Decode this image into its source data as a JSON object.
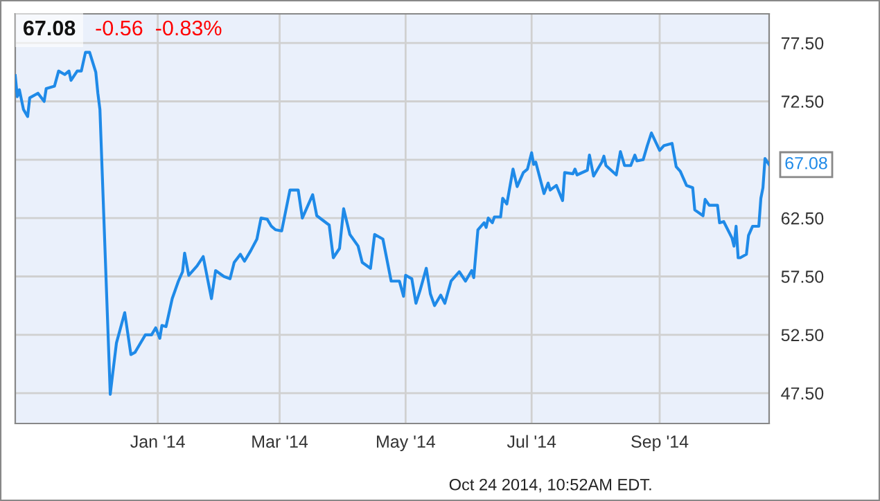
{
  "chart_data": {
    "type": "line",
    "title": "67.08",
    "subtitle": "-0.56  -0.83%",
    "x": [
      "2013-10-24",
      "2013-10-25",
      "2013-10-26",
      "2013-10-28",
      "2013-10-30",
      "2013-10-31",
      "2013-11-04",
      "2013-11-07",
      "2013-11-08",
      "2013-11-12",
      "2013-11-14",
      "2013-11-17",
      "2013-11-19",
      "2013-11-20",
      "2013-11-23",
      "2013-11-25",
      "2013-11-27",
      "2013-11-29",
      "2013-12-02",
      "2013-12-03",
      "2013-12-04",
      "2013-12-09",
      "2013-12-10",
      "2013-12-12",
      "2013-12-16",
      "2013-12-19",
      "2013-12-21",
      "2013-12-23",
      "2013-12-26",
      "2013-12-29",
      "2013-12-31",
      "2014-01-02",
      "2014-01-03",
      "2014-01-05",
      "2014-01-08",
      "2014-01-11",
      "2014-01-13",
      "2014-01-14",
      "2014-01-16",
      "2014-01-20",
      "2014-01-23",
      "2014-01-27",
      "2014-01-29",
      "2014-02-02",
      "2014-02-05",
      "2014-02-07",
      "2014-02-10",
      "2014-02-12",
      "2014-02-15",
      "2014-02-18",
      "2014-02-20",
      "2014-02-23",
      "2014-02-25",
      "2014-02-27",
      "2014-03-02",
      "2014-03-06",
      "2014-03-10",
      "2014-03-12",
      "2014-03-17",
      "2014-03-19",
      "2014-03-25",
      "2014-03-27",
      "2014-03-30",
      "2014-04-01",
      "2014-04-04",
      "2014-04-08",
      "2014-04-10",
      "2014-04-14",
      "2014-04-16",
      "2014-04-20",
      "2014-04-24",
      "2014-04-28",
      "2014-04-30",
      "2014-05-01",
      "2014-05-04",
      "2014-05-06",
      "2014-05-08",
      "2014-05-11",
      "2014-05-13",
      "2014-05-15",
      "2014-05-18",
      "2014-05-20",
      "2014-05-23",
      "2014-05-27",
      "2014-05-30",
      "2014-06-02",
      "2014-06-03",
      "2014-06-05",
      "2014-06-08",
      "2014-06-09",
      "2014-06-10",
      "2014-06-12",
      "2014-06-13",
      "2014-06-16",
      "2014-06-17",
      "2014-06-19",
      "2014-06-22",
      "2014-06-24",
      "2014-06-27",
      "2014-06-29",
      "2014-07-01",
      "2014-07-02",
      "2014-07-03",
      "2014-07-07",
      "2014-07-09",
      "2014-07-10",
      "2014-07-13",
      "2014-07-16",
      "2014-07-17",
      "2014-07-21",
      "2014-07-22",
      "2014-07-23",
      "2014-07-28",
      "2014-07-29",
      "2014-07-31",
      "2014-08-04",
      "2014-08-05",
      "2014-08-06",
      "2014-08-11",
      "2014-08-13",
      "2014-08-15",
      "2014-08-18",
      "2014-08-20",
      "2014-08-21",
      "2014-08-24",
      "2014-08-26",
      "2014-08-28",
      "2014-09-01",
      "2014-09-03",
      "2014-09-07",
      "2014-09-09",
      "2014-09-11",
      "2014-09-14",
      "2014-09-17",
      "2014-09-18",
      "2014-09-22",
      "2014-09-23",
      "2014-09-25",
      "2014-09-29",
      "2014-09-30",
      "2014-10-02",
      "2014-10-06",
      "2014-10-07",
      "2014-10-08",
      "2014-10-09",
      "2014-10-10",
      "2014-10-13",
      "2014-10-14",
      "2014-10-16",
      "2014-10-19",
      "2014-10-20",
      "2014-10-21",
      "2014-10-22",
      "2014-10-24"
    ],
    "series": [
      {
        "color": "#1f8ae8",
        "values": [
          74.7,
          72.9,
          73.5,
          71.8,
          71.2,
          72.8,
          73.2,
          72.5,
          73.6,
          73.8,
          75.1,
          74.8,
          75.1,
          74.3,
          75.1,
          75.1,
          76.7,
          76.7,
          75.0,
          73.2,
          71.8,
          47.4,
          48.9,
          51.8,
          54.4,
          50.8,
          51.0,
          51.6,
          52.5,
          52.5,
          53.1,
          52.2,
          53.3,
          53.2,
          55.6,
          57.1,
          57.9,
          59.5,
          57.6,
          58.4,
          59.2,
          55.6,
          58.0,
          57.5,
          57.3,
          58.7,
          59.4,
          58.8,
          59.7,
          60.7,
          62.5,
          62.4,
          61.8,
          61.5,
          61.4,
          64.9,
          64.9,
          62.5,
          64.5,
          62.7,
          61.9,
          59.1,
          59.9,
          63.3,
          61.1,
          60.1,
          58.7,
          58.2,
          61.1,
          60.7,
          57.1,
          57.1,
          55.8,
          57.6,
          57.3,
          55.2,
          56.3,
          58.2,
          56.0,
          55.0,
          55.9,
          55.2,
          57.1,
          57.9,
          57.1,
          58.0,
          57.4,
          61.5,
          62.1,
          61.7,
          62.5,
          62.1,
          62.6,
          62.6,
          64.2,
          63.7,
          66.7,
          65.2,
          66.4,
          66.7,
          68.1,
          67.1,
          67.3,
          64.6,
          65.5,
          64.9,
          65.3,
          64.0,
          66.4,
          66.3,
          66.7,
          66.2,
          66.6,
          67.9,
          66.1,
          67.3,
          67.8,
          67.0,
          66.2,
          68.2,
          67.0,
          67.0,
          67.9,
          67.4,
          67.5,
          68.7,
          69.8,
          68.3,
          68.7,
          68.9,
          66.9,
          66.5,
          65.3,
          65.1,
          63.2,
          62.7,
          64.1,
          63.6,
          63.6,
          62.1,
          62.2,
          60.8,
          60.1,
          61.8,
          59.1,
          59.1,
          59.4,
          61.0,
          61.8,
          61.8,
          64.2,
          65.1,
          67.6,
          67.08
        ]
      }
    ],
    "xlim": [
      "2013-10-24",
      "2014-10-24"
    ],
    "xticks": [
      {
        "value": "2014-01-01",
        "label": "Jan '14"
      },
      {
        "value": "2014-03-01",
        "label": "Mar '14"
      },
      {
        "value": "2014-05-01",
        "label": "May '14"
      },
      {
        "value": "2014-07-01",
        "label": "Jul '14"
      },
      {
        "value": "2014-09-01",
        "label": "Sep '14"
      }
    ],
    "ylim": [
      44.9,
      80.0
    ],
    "yticks": [
      {
        "value": 47.5,
        "label": "47.50"
      },
      {
        "value": 52.5,
        "label": "52.50"
      },
      {
        "value": 57.5,
        "label": "57.50"
      },
      {
        "value": 62.5,
        "label": "62.50"
      },
      {
        "value": 67.5,
        "label": null
      },
      {
        "value": 72.5,
        "label": "72.50"
      },
      {
        "value": 77.5,
        "label": "77.50"
      }
    ],
    "grid": true,
    "annotations": [
      {
        "text": "67.08",
        "x": "2014-10-24",
        "y": 67.08
      },
      "Oct 24 2014, 10:52AM EDT."
    ]
  }
}
